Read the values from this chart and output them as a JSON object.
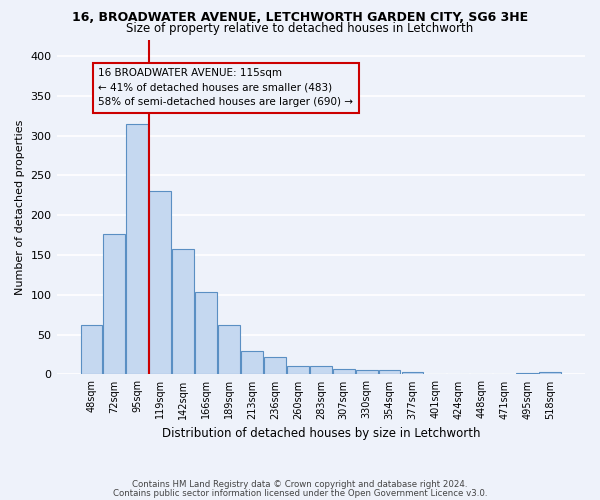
{
  "title1": "16, BROADWATER AVENUE, LETCHWORTH GARDEN CITY, SG6 3HE",
  "title2": "Size of property relative to detached houses in Letchworth",
  "xlabel": "Distribution of detached houses by size in Letchworth",
  "ylabel": "Number of detached properties",
  "footnote1": "Contains HM Land Registry data © Crown copyright and database right 2024.",
  "footnote2": "Contains public sector information licensed under the Open Government Licence v3.0.",
  "bar_labels": [
    "48sqm",
    "72sqm",
    "95sqm",
    "119sqm",
    "142sqm",
    "166sqm",
    "189sqm",
    "213sqm",
    "236sqm",
    "260sqm",
    "283sqm",
    "307sqm",
    "330sqm",
    "354sqm",
    "377sqm",
    "401sqm",
    "424sqm",
    "448sqm",
    "471sqm",
    "495sqm",
    "518sqm"
  ],
  "bar_values": [
    62,
    176,
    314,
    230,
    158,
    103,
    62,
    29,
    22,
    10,
    11,
    7,
    6,
    5,
    3,
    1,
    0,
    1,
    0,
    2,
    3
  ],
  "bar_color": "#c5d8f0",
  "bar_edge_color": "#5a8fc3",
  "vline_color": "#cc0000",
  "annotation_line1": "16 BROADWATER AVENUE: 115sqm",
  "annotation_line2": "← 41% of detached houses are smaller (483)",
  "annotation_line3": "58% of semi-detached houses are larger (690) →",
  "annotation_box_color": "#cc0000",
  "background_color": "#eef2fa",
  "grid_color": "#ffffff",
  "ylim": [
    0,
    420
  ],
  "yticks": [
    0,
    50,
    100,
    150,
    200,
    250,
    300,
    350,
    400
  ]
}
